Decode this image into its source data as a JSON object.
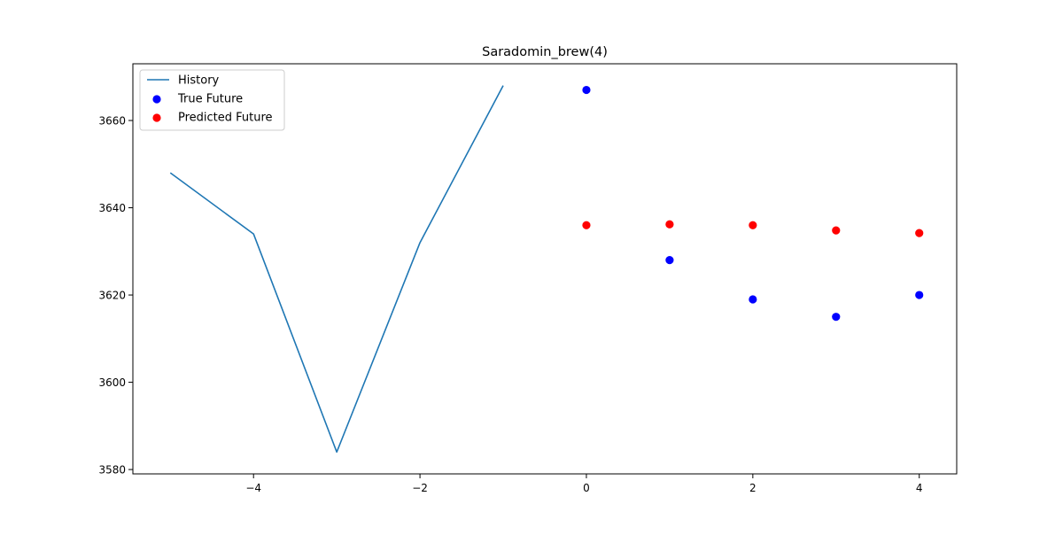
{
  "chart_data": {
    "type": "line",
    "title": "Saradomin_brew(4)",
    "xlabel": "",
    "ylabel": "",
    "xlim": [
      -5.45,
      4.45
    ],
    "ylim": [
      3579,
      3673
    ],
    "x_ticks": [
      -4,
      -2,
      0,
      2,
      4
    ],
    "x_tick_labels": [
      "−4",
      "−2",
      "0",
      "2",
      "4"
    ],
    "y_ticks": [
      3580,
      3600,
      3620,
      3640,
      3660
    ],
    "y_tick_labels": [
      "3580",
      "3600",
      "3620",
      "3640",
      "3660"
    ],
    "grid": false,
    "legend": {
      "position": "top-left",
      "entries": [
        {
          "label": "History",
          "marker": "line",
          "color": "#1f77b4"
        },
        {
          "label": "True Future",
          "marker": "dot",
          "color": "#0000ff"
        },
        {
          "label": "Predicted Future",
          "marker": "dot",
          "color": "#ff0000"
        }
      ]
    },
    "series": [
      {
        "name": "History",
        "kind": "line",
        "color": "#1f77b4",
        "x": [
          -5,
          -4,
          -3,
          -2,
          -1
        ],
        "y": [
          3648,
          3634,
          3584,
          3632,
          3668
        ]
      },
      {
        "name": "True Future",
        "kind": "scatter",
        "color": "#0000ff",
        "x": [
          0,
          1,
          2,
          3,
          4
        ],
        "y": [
          3667,
          3628,
          3619,
          3615,
          3620
        ]
      },
      {
        "name": "Predicted Future",
        "kind": "scatter",
        "color": "#ff0000",
        "x": [
          0,
          1,
          2,
          3,
          4
        ],
        "y": [
          3636,
          3636.2,
          3636,
          3634.8,
          3634.2
        ]
      }
    ]
  }
}
